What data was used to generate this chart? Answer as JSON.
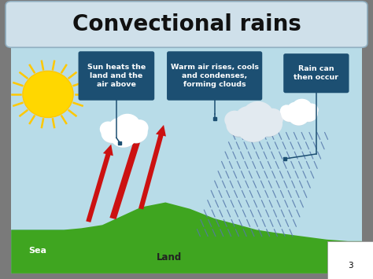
{
  "title": "Convectional rains",
  "title_fontsize": 20,
  "title_bg_top": "#cfe0ea",
  "title_bg_bot": "#a8c4d4",
  "outer_bg": "#7a7a7a",
  "diagram_bg": "#ffffff",
  "sky_color": "#b8dce8",
  "label1": "Sun heats the\nland and the\nair above",
  "label2": "Warm air rises, cools\nand condenses,\nforming clouds",
  "label3": "Rain can\nthen occur",
  "label_bg": "#1c4f72",
  "label_fg": "#ffffff",
  "sea_color": "#6ab0d8",
  "land_color": "#3fa520",
  "sea_label": "Sea",
  "land_label": "Land",
  "sun_body": "#ffd700",
  "sun_ray": "#ffc800",
  "arrow_color": "#cc1111",
  "rain_color": "#5577aa",
  "cloud_white": "#ffffff",
  "cloud_gray": "#d0d8e0",
  "connector_color": "#1c4f72",
  "page_num": "3"
}
